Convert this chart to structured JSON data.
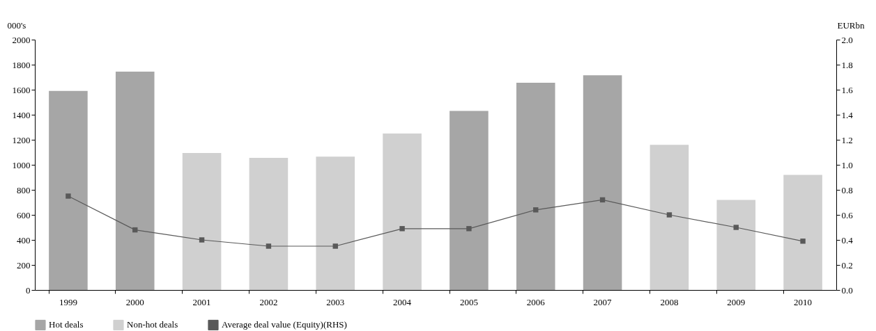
{
  "chart_data": {
    "type": "bar",
    "categories": [
      "1999",
      "2000",
      "2001",
      "2002",
      "2003",
      "2004",
      "2005",
      "2006",
      "2007",
      "2008",
      "2009",
      "2010"
    ],
    "series": [
      {
        "name": "Hot deals",
        "color": "#a6a6a6",
        "values": [
          1590,
          1745,
          null,
          null,
          null,
          null,
          1430,
          1655,
          1715,
          null,
          null,
          null
        ]
      },
      {
        "name": "Non-hot deals",
        "color": "#d0d0d0",
        "values": [
          null,
          null,
          1095,
          1055,
          1065,
          1250,
          null,
          null,
          null,
          1160,
          720,
          920
        ]
      },
      {
        "name": "Average deal value (Equity)(RHS)",
        "type": "line",
        "axis": "y2",
        "color": "#595959",
        "values": [
          0.75,
          0.48,
          0.4,
          0.35,
          0.35,
          0.49,
          0.49,
          0.64,
          0.72,
          0.6,
          0.5,
          0.39
        ]
      }
    ],
    "ylabel": "000's",
    "y2label": "EURbn",
    "ylim": [
      0,
      2000
    ],
    "yticks": [
      0,
      200,
      400,
      600,
      800,
      1000,
      1200,
      1400,
      1600,
      1800,
      2000
    ],
    "y2lim": [
      0,
      2
    ],
    "y2ticks": [
      {
        "value": 0,
        "label": "0.0"
      },
      {
        "value": 0.2,
        "label": "0.2"
      },
      {
        "value": 0.4,
        "label": "0.4"
      },
      {
        "value": 0.6,
        "label": "0.6"
      },
      {
        "value": 0.8,
        "label": "0.8"
      },
      {
        "value": 1,
        "label": "1.0"
      },
      {
        "value": 1.2,
        "label": "1.2"
      },
      {
        "value": 1.4,
        "label": "1.4"
      },
      {
        "value": 1.6,
        "label": "1.6"
      },
      {
        "value": 1.8,
        "label": "1.8"
      },
      {
        "value": 2,
        "label": "2.0"
      }
    ],
    "grid": false,
    "legend": "bottom",
    "marker": "square",
    "line_style": "solid"
  }
}
